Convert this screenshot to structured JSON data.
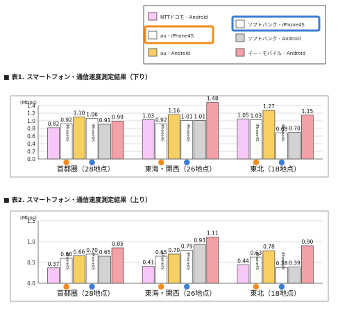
{
  "legend": {
    "items": [
      {
        "name": "NTTドコモ  - Android",
        "color": "#f7c8f7"
      },
      {
        "name": "au  - iPhone4S",
        "color": "#ffffff"
      },
      {
        "name": "au  - Android",
        "color": "#f7cf63"
      },
      {
        "name": "ソフトバンク  - iPhone4S",
        "color": "#ffffff"
      },
      {
        "name": "ソフトバンク  - Android",
        "color": "#d3d3d3"
      },
      {
        "name": "イー・モバイル  - Android",
        "color": "#f4a0a8"
      }
    ],
    "highlight_colors": {
      "au": "#f28c1e",
      "softbank": "#3d7dd6"
    }
  },
  "chart_data": [
    {
      "type": "bar",
      "title": "■ 表1. スマートフォン・通信速度測定結果（下り）",
      "ylabel": "(Mbps)",
      "ylim": [
        0,
        1.4
      ],
      "yticks": [
        "0.0",
        "0.2",
        "0.4",
        "0.6",
        "0.8",
        "1.0",
        "1.2",
        "1.4"
      ],
      "categories": [
        "首都圏（28地点）",
        "東海・関西（26地点）",
        "東北（18地点）"
      ],
      "series": [
        {
          "name": "NTTドコモ  - Android",
          "values": [
            0.82,
            1.03,
            1.05
          ]
        },
        {
          "name": "au  - iPhone4S",
          "values": [
            0.92,
            0.92,
            1.03
          ]
        },
        {
          "name": "au  - Android",
          "values": [
            1.1,
            1.16,
            1.27
          ]
        },
        {
          "name": "ソフトバンク  - iPhone4S",
          "values": [
            1.06,
            1.01,
            0.68
          ]
        },
        {
          "name": "ソフトバンク  - Android",
          "values": [
            0.91,
            1.01,
            0.7
          ]
        },
        {
          "name": "イー・モバイル  - Android",
          "values": [
            0.99,
            1.48,
            1.15
          ]
        }
      ],
      "value_labels": [
        [
          "0.82",
          "0.92",
          "1.10",
          "1.06",
          "0.91",
          "0.99"
        ],
        [
          "1.03",
          "0.92",
          "1.16",
          "1.01",
          "1.01",
          "1.48"
        ],
        [
          "1.05",
          "1.03",
          "1.27",
          "0.68",
          "0.70",
          "1.15"
        ]
      ],
      "bar_text": "iPhone4S"
    },
    {
      "type": "bar",
      "title": "■ 表2. スマートフォン・通信速度測定結果（上り）",
      "ylabel": "(Mbps)",
      "ylim": [
        0,
        1.5
      ],
      "yticks": [
        "0.0",
        "0.5",
        "1.0",
        "1.5"
      ],
      "categories": [
        "首都圏（28地点）",
        "東海・関西（26地点）",
        "東北（18地点）"
      ],
      "series": [
        {
          "name": "NTTドコモ  - Android",
          "values": [
            0.37,
            0.41,
            0.44
          ]
        },
        {
          "name": "au  - iPhone4S",
          "values": [
            0.6,
            0.65,
            0.63
          ]
        },
        {
          "name": "au  - Android",
          "values": [
            0.66,
            0.7,
            0.78
          ]
        },
        {
          "name": "ソフトバンク  - iPhone4S",
          "values": [
            0.7,
            0.79,
            0.38
          ]
        },
        {
          "name": "ソフトバンク  - Android",
          "values": [
            0.65,
            0.93,
            0.39
          ]
        },
        {
          "name": "イー・モバイル  - Android",
          "values": [
            0.85,
            1.11,
            0.9
          ]
        }
      ],
      "value_labels": [
        [
          "0.37",
          "0.60",
          "0.66",
          "0.70",
          "0.65",
          "0.85"
        ],
        [
          "0.41",
          "0.65",
          "0.70",
          "0.79",
          "0.93",
          "1.11"
        ],
        [
          "0.44",
          "0.63",
          "0.78",
          "0.38",
          "0.39",
          "0.90"
        ]
      ],
      "bar_text": "iPhone4S"
    }
  ]
}
